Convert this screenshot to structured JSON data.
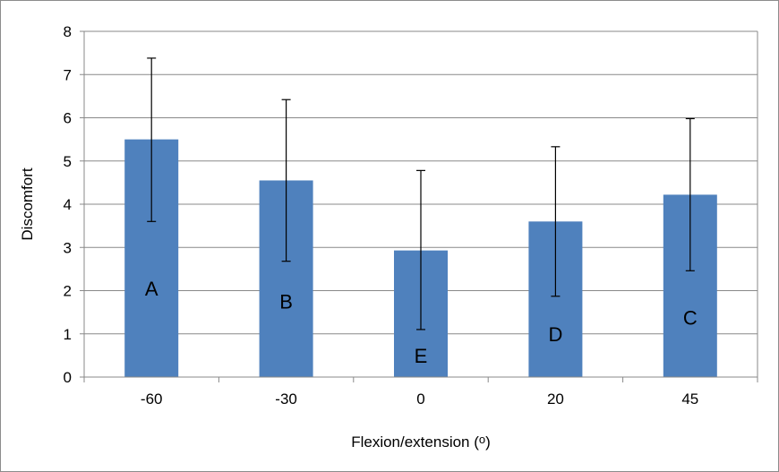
{
  "chart_data": {
    "type": "bar",
    "title": "",
    "xlabel": "Flexion/extension (o)",
    "ylabel": "Discomfort",
    "categories": [
      "-60",
      "-30",
      "0",
      "20",
      "45"
    ],
    "values": [
      5.5,
      4.55,
      2.93,
      3.6,
      4.22
    ],
    "error_bars": {
      "upper": [
        7.38,
        6.42,
        4.78,
        5.33,
        5.98
      ],
      "lower": [
        3.6,
        2.68,
        1.1,
        1.87,
        2.46
      ]
    },
    "bar_labels": [
      "A",
      "B",
      "E",
      "D",
      "C"
    ],
    "bar_label_values": [
      2.05,
      1.75,
      0.5,
      1.0,
      1.38
    ],
    "ylim": [
      0,
      8
    ],
    "yticks": [
      "0",
      "1",
      "2",
      "3",
      "4",
      "5",
      "6",
      "7",
      "8"
    ],
    "grid": true,
    "legend": "none",
    "colors": {
      "bar": "#4f81bd",
      "grid": "#898989",
      "axis": "#898989",
      "error_bar": "#000000"
    }
  }
}
